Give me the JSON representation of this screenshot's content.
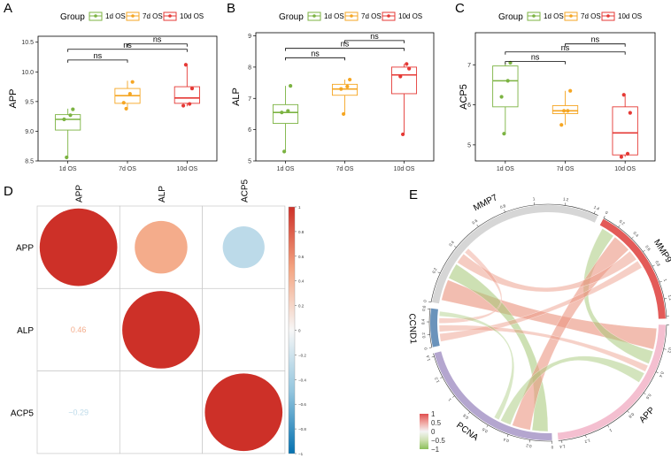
{
  "colors": {
    "g1": "#7cb342",
    "g7": "#f5a623",
    "g10": "#e53935",
    "ns_line": "#000000"
  },
  "chart_data": [
    {
      "panel": "A",
      "type": "box",
      "legend_title": "Group",
      "legend": [
        "1d OS",
        "7d OS",
        "10d OS"
      ],
      "ylabel": "APP",
      "categories": [
        "1d OS",
        "7d OS",
        "10d OS"
      ],
      "ylim": [
        8.5,
        10.6
      ],
      "yticks": [
        "8.5",
        "9.0",
        "9.5",
        "10.0",
        "10.5"
      ],
      "boxes": [
        {
          "q1": 9.02,
          "median": 9.2,
          "q3": 9.28,
          "whisker_low": 8.55,
          "whisker_high": 9.38,
          "points": [
            9.2,
            9.27,
            9.37,
            8.56
          ]
        },
        {
          "q1": 9.47,
          "median": 9.6,
          "q3": 9.72,
          "whisker_low": 9.38,
          "whisker_high": 9.85,
          "points": [
            9.48,
            9.63,
            9.83,
            9.38
          ]
        },
        {
          "q1": 9.47,
          "median": 9.56,
          "q3": 9.75,
          "whisker_low": 9.42,
          "whisker_high": 10.12,
          "points": [
            9.43,
            9.46,
            9.72,
            10.12
          ]
        }
      ],
      "comparisons": [
        {
          "from": 0,
          "to": 1,
          "label": "ns",
          "y": 10.2
        },
        {
          "from": 0,
          "to": 2,
          "label": "ns",
          "y": 10.38
        },
        {
          "from": 1,
          "to": 2,
          "label": "ns",
          "y": 10.47
        }
      ]
    },
    {
      "panel": "B",
      "type": "box",
      "legend_title": "Group",
      "legend": [
        "1d OS",
        "7d OS",
        "10d OS"
      ],
      "ylabel": "ALP",
      "categories": [
        "1d OS",
        "7d OS",
        "10d OS"
      ],
      "ylim": [
        5,
        9.1
      ],
      "yticks": [
        "5",
        "6",
        "7",
        "8",
        "9"
      ],
      "boxes": [
        {
          "q1": 6.2,
          "median": 6.55,
          "q3": 6.8,
          "whisker_low": 5.3,
          "whisker_high": 7.4,
          "points": [
            6.55,
            6.6,
            7.4,
            5.3
          ]
        },
        {
          "q1": 7.1,
          "median": 7.3,
          "q3": 7.45,
          "whisker_low": 6.5,
          "whisker_high": 7.6,
          "points": [
            7.3,
            7.38,
            7.6,
            6.5
          ]
        },
        {
          "q1": 7.15,
          "median": 7.75,
          "q3": 8.0,
          "whisker_low": 5.85,
          "whisker_high": 8.1,
          "points": [
            7.7,
            8.1,
            7.95,
            5.85
          ]
        }
      ],
      "comparisons": [
        {
          "from": 0,
          "to": 1,
          "label": "ns",
          "y": 8.3
        },
        {
          "from": 0,
          "to": 2,
          "label": "ns",
          "y": 8.6
        },
        {
          "from": 1,
          "to": 2,
          "label": "ns",
          "y": 8.85
        }
      ]
    },
    {
      "panel": "C",
      "type": "box",
      "legend_title": "Group",
      "legend": [
        "1d OS",
        "7d OS",
        "10d OS"
      ],
      "ylabel": "ACP5",
      "categories": [
        "1d OS",
        "7d OS",
        "10d OS"
      ],
      "ylim": [
        4.6,
        7.8
      ],
      "yticks": [
        "5",
        "6",
        "7"
      ],
      "boxes": [
        {
          "q1": 5.95,
          "median": 6.6,
          "q3": 6.97,
          "whisker_low": 5.28,
          "whisker_high": 7.05,
          "points": [
            6.2,
            6.6,
            7.05,
            5.28
          ]
        },
        {
          "q1": 5.78,
          "median": 5.85,
          "q3": 5.98,
          "whisker_low": 5.5,
          "whisker_high": 6.35,
          "points": [
            5.5,
            5.85,
            6.35,
            5.85
          ]
        },
        {
          "q1": 4.75,
          "median": 5.3,
          "q3": 5.95,
          "whisker_low": 4.7,
          "whisker_high": 6.25,
          "points": [
            4.7,
            4.78,
            5.8,
            6.25
          ]
        }
      ],
      "comparisons": [
        {
          "from": 0,
          "to": 1,
          "label": "ns",
          "y": 7.08
        },
        {
          "from": 0,
          "to": 2,
          "label": "ns",
          "y": 7.32
        },
        {
          "from": 1,
          "to": 2,
          "label": "ns",
          "y": 7.52
        }
      ]
    },
    {
      "panel": "D",
      "type": "heatmap",
      "subtype": "correlation-circles",
      "variables": [
        "APP",
        "ALP",
        "ACP5"
      ],
      "matrix": [
        [
          1,
          0.46,
          -0.29
        ],
        [
          0.46,
          1,
          0
        ],
        [
          -0.29,
          0,
          1
        ]
      ],
      "lower_labels": [
        {
          "row": 1,
          "col": 0,
          "text": "0.46",
          "value": 0.46
        },
        {
          "row": 2,
          "col": 0,
          "text": "−0.29",
          "value": -0.29
        }
      ],
      "colorbar_ticks": [
        "1",
        "0.8",
        "0.6",
        "0.4",
        "0.2",
        "0",
        "−0.2",
        "−0.4",
        "−0.6",
        "−0.8",
        "−1"
      ]
    },
    {
      "panel": "E",
      "type": "other",
      "subtype": "chord",
      "sectors": [
        {
          "name": "MMP7",
          "color": "#d6d6d6",
          "ticks": [
            "0",
            "0.2",
            "0.4",
            "0.6",
            "0.8",
            "1",
            "1.2",
            "1.4"
          ]
        },
        {
          "name": "MMP9",
          "color": "#e35a58",
          "ticks": [
            "0",
            "0.2",
            "0.4",
            "0.6",
            "0.8",
            "1",
            "1.2",
            "1.4"
          ]
        },
        {
          "name": "APP",
          "color": "#f4bfd0",
          "ticks": [
            "0",
            "0.2",
            "0.4",
            "0.6",
            "0.8",
            "1",
            "1.2",
            "1.4"
          ]
        },
        {
          "name": "PCNA",
          "color": "#b4a6cf",
          "ticks": [
            "0",
            "0.2",
            "0.4",
            "0.6",
            "0.8",
            "1",
            "1.2",
            "1.4"
          ]
        },
        {
          "name": "CCND1",
          "color": "#6a93bb",
          "ticks": [
            "0",
            "0.2",
            "0.4",
            "0.6"
          ]
        }
      ],
      "links": [
        {
          "from": "MMP7",
          "to": "APP",
          "value": 0.8
        },
        {
          "from": "MMP7",
          "to": "PCNA",
          "value": -0.6
        },
        {
          "from": "MMP9",
          "to": "APP",
          "value": -0.5
        },
        {
          "from": "MMP9",
          "to": "PCNA",
          "value": 0.7
        },
        {
          "from": "MMP9",
          "to": "MMP7",
          "value": 0.4
        },
        {
          "from": "CCND1",
          "to": "MMP9",
          "value": 0.3
        },
        {
          "from": "CCND1",
          "to": "APP",
          "value": 0.25
        },
        {
          "from": "PCNA",
          "to": "APP",
          "value": -0.4
        },
        {
          "from": "MMP7",
          "to": "CCND1",
          "value": 0.2
        },
        {
          "from": "PCNA",
          "to": "CCND1",
          "value": -0.2
        }
      ],
      "legend_ticks": [
        "1",
        "0.5",
        "0",
        "−0.5",
        "−1"
      ]
    }
  ],
  "panel_letters": [
    "A",
    "B",
    "C",
    "D",
    "E"
  ]
}
